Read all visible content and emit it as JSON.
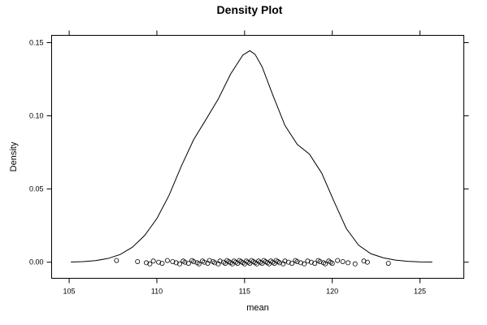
{
  "chart_data": {
    "type": "line",
    "title": "Density Plot",
    "xlabel": "mean",
    "ylabel": "Density",
    "xlim": [
      104,
      127.5
    ],
    "ylim": [
      -0.011,
      0.155
    ],
    "x_ticks": [
      105,
      110,
      115,
      120,
      125
    ],
    "x_tick_labels": [
      "105",
      "110",
      "115",
      "120",
      "125"
    ],
    "y_ticks": [
      0.0,
      0.05,
      0.1,
      0.15
    ],
    "y_tick_labels": [
      "0.00",
      "0.05",
      "0.10",
      "0.15"
    ],
    "grid": false,
    "series": [
      {
        "x": [
          105.1,
          105.8,
          106.5,
          107.2,
          107.9,
          108.6,
          109.3,
          110.0,
          110.7,
          111.4,
          112.1,
          112.8,
          113.5,
          114.2,
          114.9,
          115.3,
          115.6,
          116.0,
          116.6,
          117.3,
          118.0,
          118.7,
          119.4,
          120.1,
          120.8,
          121.5,
          122.2,
          122.9,
          123.6,
          124.3,
          125.0,
          125.7
        ],
        "y": [
          0.0001,
          0.0004,
          0.0011,
          0.0025,
          0.0052,
          0.0102,
          0.0182,
          0.0298,
          0.0458,
          0.0658,
          0.0838,
          0.0975,
          0.1115,
          0.1285,
          0.1415,
          0.1445,
          0.142,
          0.1335,
          0.1145,
          0.0935,
          0.0805,
          0.0738,
          0.0608,
          0.0415,
          0.023,
          0.0116,
          0.0058,
          0.003,
          0.0014,
          0.0006,
          0.0002,
          0.0001
        ]
      }
    ],
    "rug_points": [
      107.7,
      108.9,
      109.4,
      109.6,
      109.8,
      110.1,
      110.3,
      110.6,
      110.9,
      111.1,
      111.3,
      111.5,
      111.6,
      111.8,
      112.0,
      112.1,
      112.3,
      112.4,
      112.6,
      112.7,
      112.9,
      113.0,
      113.2,
      113.3,
      113.5,
      113.6,
      113.8,
      113.9,
      114.0,
      114.1,
      114.2,
      114.3,
      114.4,
      114.5,
      114.6,
      114.7,
      114.8,
      114.9,
      115.0,
      115.1,
      115.2,
      115.3,
      115.4,
      115.5,
      115.6,
      115.7,
      115.8,
      115.9,
      116.0,
      116.1,
      116.2,
      116.3,
      116.4,
      116.5,
      116.6,
      116.7,
      116.8,
      116.9,
      117.0,
      117.2,
      117.3,
      117.5,
      117.7,
      117.9,
      118.0,
      118.2,
      118.4,
      118.6,
      118.8,
      119.0,
      119.2,
      119.3,
      119.5,
      119.6,
      119.8,
      119.9,
      120.0,
      120.3,
      120.6,
      120.9,
      121.3,
      121.8,
      122.0,
      123.2
    ],
    "rug_y": 0
  }
}
